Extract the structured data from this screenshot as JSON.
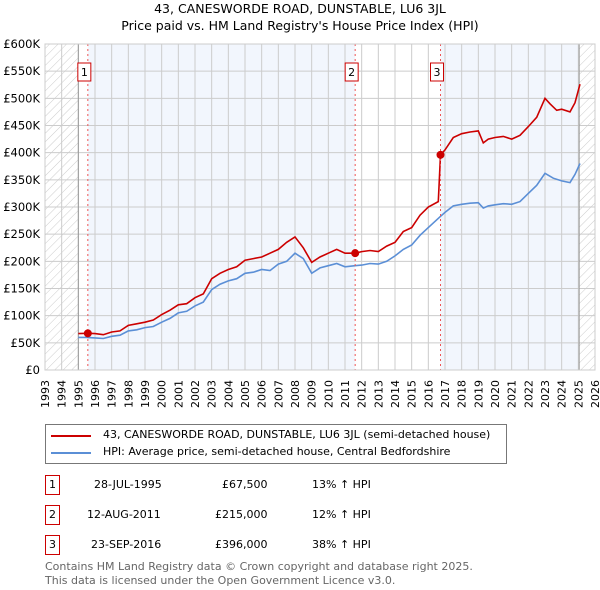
{
  "chart_data": {
    "type": "line",
    "title": "43, CANESWORDE ROAD, DUNSTABLE, LU6 3JL",
    "subtitle": "Price paid vs. HM Land Registry's House Price Index (HPI)",
    "xlim": [
      1993,
      2026
    ],
    "ylim": [
      0,
      600000
    ],
    "x_ticks": [
      "1993",
      "1994",
      "1995",
      "1996",
      "1997",
      "1998",
      "1999",
      "2000",
      "2001",
      "2002",
      "2003",
      "2004",
      "2005",
      "2006",
      "2007",
      "2008",
      "2009",
      "2010",
      "2011",
      "2012",
      "2013",
      "2014",
      "2015",
      "2016",
      "2017",
      "2018",
      "2019",
      "2020",
      "2021",
      "2022",
      "2023",
      "2024",
      "2025",
      "2026"
    ],
    "y_ticks": [
      "£0",
      "£50K",
      "£100K",
      "£150K",
      "£200K",
      "£250K",
      "£300K",
      "£350K",
      "£400K",
      "£450K",
      "£500K",
      "£550K",
      "£600K"
    ],
    "grid": true,
    "series": [
      {
        "name": "43, CANESWORDE ROAD, DUNSTABLE, LU6 3JL (semi-detached house)",
        "color": "#cc0000",
        "x": [
          1995.0,
          1995.57,
          1996,
          1996.5,
          1997,
          1997.5,
          1998,
          1998.5,
          1999,
          1999.5,
          2000,
          2000.5,
          2001,
          2001.5,
          2002,
          2002.5,
          2003,
          2003.5,
          2004,
          2004.5,
          2005,
          2005.5,
          2006,
          2006.5,
          2007,
          2007.5,
          2008,
          2008.5,
          2009,
          2009.5,
          2010,
          2010.5,
          2011,
          2011.61,
          2012,
          2012.5,
          2013,
          2013.5,
          2014,
          2014.5,
          2015,
          2015.5,
          2016,
          2016.6,
          2016.73,
          2017,
          2017.5,
          2018,
          2018.5,
          2019,
          2019.3,
          2019.6,
          2020,
          2020.5,
          2021,
          2021.5,
          2022,
          2022.5,
          2023,
          2023.3,
          2023.7,
          2024,
          2024.5,
          2024.8,
          2025.1
        ],
        "y": [
          67000,
          67500,
          67000,
          65000,
          70000,
          72000,
          82000,
          85000,
          88000,
          92000,
          102000,
          110000,
          120000,
          122000,
          133000,
          140000,
          168000,
          178000,
          185000,
          190000,
          202000,
          205000,
          208000,
          215000,
          222000,
          235000,
          245000,
          225000,
          198000,
          208000,
          215000,
          222000,
          215000,
          215000,
          218000,
          220000,
          218000,
          228000,
          235000,
          255000,
          262000,
          285000,
          300000,
          310000,
          396000,
          405000,
          428000,
          435000,
          438000,
          440000,
          418000,
          425000,
          428000,
          430000,
          425000,
          432000,
          448000,
          465000,
          500000,
          490000,
          478000,
          480000,
          475000,
          492000,
          526000
        ]
      },
      {
        "name": "HPI: Average price, semi-detached house, Central Bedfordshire",
        "color": "#5b8fd6",
        "x": [
          1995.0,
          1995.5,
          1996,
          1996.5,
          1997,
          1997.5,
          1998,
          1998.5,
          1999,
          1999.5,
          2000,
          2000.5,
          2001,
          2001.5,
          2002,
          2002.5,
          2003,
          2003.5,
          2004,
          2004.5,
          2005,
          2005.5,
          2006,
          2006.5,
          2007,
          2007.5,
          2008,
          2008.5,
          2009,
          2009.5,
          2010,
          2010.5,
          2011,
          2011.6,
          2012,
          2012.5,
          2013,
          2013.5,
          2014,
          2014.5,
          2015,
          2015.5,
          2016,
          2016.7,
          2017,
          2017.5,
          2018,
          2018.5,
          2019,
          2019.3,
          2019.6,
          2020,
          2020.5,
          2021,
          2021.5,
          2022,
          2022.5,
          2023,
          2023.5,
          2024,
          2024.5,
          2024.8,
          2025.1
        ],
        "y": [
          60000,
          60000,
          59000,
          58000,
          62000,
          64000,
          72000,
          74000,
          78000,
          80000,
          88000,
          95000,
          105000,
          108000,
          118000,
          125000,
          148000,
          158000,
          164000,
          168000,
          178000,
          180000,
          185000,
          183000,
          195000,
          200000,
          215000,
          205000,
          178000,
          188000,
          192000,
          196000,
          190000,
          192000,
          193000,
          196000,
          195000,
          200000,
          210000,
          222000,
          230000,
          248000,
          262000,
          282000,
          290000,
          302000,
          305000,
          307000,
          308000,
          298000,
          302000,
          304000,
          306000,
          305000,
          310000,
          325000,
          340000,
          362000,
          353000,
          348000,
          345000,
          360000,
          380000
        ]
      }
    ],
    "sales": [
      {
        "label": "1",
        "x": 1995.57,
        "y": 67500
      },
      {
        "label": "2",
        "x": 2011.61,
        "y": 215000
      },
      {
        "label": "3",
        "x": 2016.73,
        "y": 396000
      }
    ],
    "legend_position": "below"
  },
  "table": [
    {
      "num": "1",
      "date": "28-JUL-1995",
      "price": "£67,500",
      "hpi": "13% ↑ HPI"
    },
    {
      "num": "2",
      "date": "12-AUG-2011",
      "price": "£215,000",
      "hpi": "12% ↑ HPI"
    },
    {
      "num": "3",
      "date": "23-SEP-2016",
      "price": "£396,000",
      "hpi": "38% ↑ HPI"
    }
  ],
  "footer": {
    "line1": "Contains HM Land Registry data © Crown copyright and database right 2025.",
    "line2": "This data is licensed under the Open Government Licence v3.0."
  }
}
